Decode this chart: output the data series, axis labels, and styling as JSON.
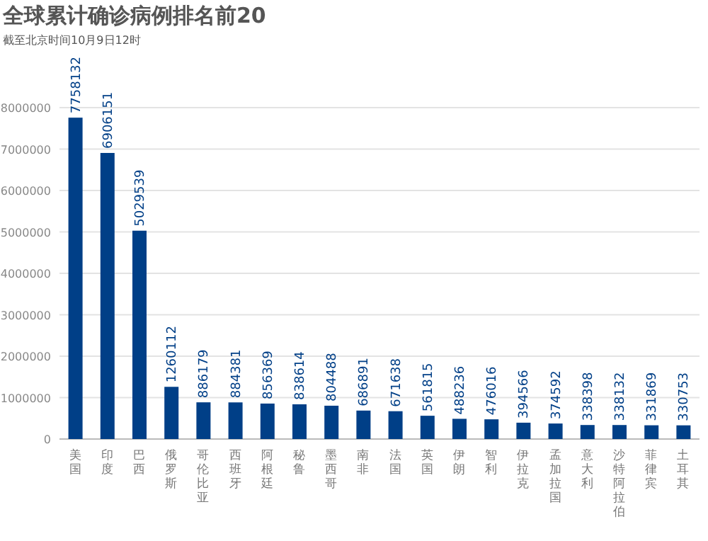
{
  "chart_data": {
    "type": "bar",
    "title": "全球累计确诊病例排名前20",
    "subtitle": "截至北京时间10月9日12时",
    "categories": [
      "美国",
      "印度",
      "巴西",
      "俄罗斯",
      "哥伦比亚",
      "西班牙",
      "阿根廷",
      "秘鲁",
      "墨西哥",
      "南非",
      "法国",
      "英国",
      "伊朗",
      "智利",
      "伊拉克",
      "孟加拉国",
      "意大利",
      "沙特阿拉伯",
      "菲律宾",
      "土耳其"
    ],
    "values": [
      7758132,
      6906151,
      5029539,
      1260112,
      886179,
      884381,
      856369,
      838614,
      804488,
      686891,
      671638,
      561815,
      488236,
      476016,
      394566,
      374592,
      338398,
      338132,
      331869,
      330753
    ],
    "color": "#003f87",
    "data_labels": true,
    "ylim": [
      0,
      8000000
    ],
    "yticks": [
      0,
      1000000,
      2000000,
      3000000,
      4000000,
      5000000,
      6000000,
      7000000,
      8000000
    ],
    "grid": "y"
  }
}
